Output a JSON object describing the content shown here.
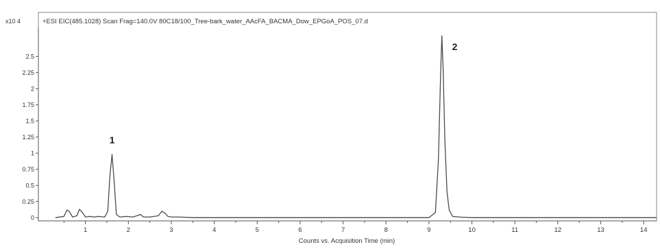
{
  "chart_data": {
    "type": "line",
    "title": "+ESI EIC(485.1028) Scan Frag=140.0V 80C18/100_Tree-bark_water_AAcFA_BACMA_Dow_EPGoA_POS_07.d",
    "y_multiplier_label": "x10 4",
    "xlabel": "Counts vs. Acquisition Time (min)",
    "ylabel": "",
    "xlim": [
      0,
      14.3
    ],
    "ylim": [
      -0.05,
      2.95
    ],
    "x_ticks": [
      1,
      2,
      3,
      4,
      5,
      6,
      7,
      8,
      9,
      10,
      11,
      12,
      13,
      14
    ],
    "x_tick_labels": [
      "1",
      "2",
      "3",
      "4",
      "5",
      "6",
      "7",
      "8",
      "9",
      "10",
      "11",
      "12",
      "13",
      "14"
    ],
    "y_ticks": [
      0,
      0.25,
      0.5,
      0.75,
      1,
      1.25,
      1.5,
      1.75,
      2,
      2.25,
      2.5
    ],
    "y_tick_labels": [
      "0",
      "0.25",
      "0.5",
      "0.75",
      "1",
      "1.25",
      "1.5",
      "1.75",
      "2",
      "2.25",
      "2.5"
    ],
    "grid": false,
    "annotations": [
      {
        "text": "1",
        "x": 1.62,
        "y": 1.15
      },
      {
        "text": "2",
        "x": 9.6,
        "y": 2.6
      }
    ],
    "series": [
      {
        "x": [
          0.3,
          0.5,
          0.57,
          0.63,
          0.7,
          0.8,
          0.86,
          0.93,
          1.0,
          1.1,
          1.2,
          1.3,
          1.45,
          1.52,
          1.57,
          1.62,
          1.67,
          1.72,
          1.8,
          1.95,
          2.1,
          2.2,
          2.28,
          2.35,
          2.5,
          2.7,
          2.78,
          2.85,
          2.92,
          3.0,
          3.2,
          3.5,
          4.0,
          5.0,
          6.0,
          7.0,
          8.0,
          9.0,
          9.15,
          9.22,
          9.27,
          9.3,
          9.33,
          9.37,
          9.42,
          9.47,
          9.55,
          9.7,
          10.0,
          11.0,
          12.0,
          13.0,
          14.0,
          14.3
        ],
        "y": [
          0.0,
          0.02,
          0.12,
          0.09,
          0.01,
          0.03,
          0.13,
          0.08,
          0.01,
          0.02,
          0.01,
          0.02,
          0.01,
          0.1,
          0.65,
          0.98,
          0.55,
          0.05,
          0.01,
          0.02,
          0.01,
          0.03,
          0.05,
          0.01,
          0.01,
          0.03,
          0.1,
          0.07,
          0.02,
          0.01,
          0.01,
          0.0,
          0.0,
          0.0,
          0.0,
          0.0,
          0.0,
          0.0,
          0.08,
          0.9,
          2.2,
          2.82,
          2.3,
          1.2,
          0.4,
          0.12,
          0.02,
          0.01,
          0.0,
          0.0,
          0.0,
          0.0,
          0.0,
          0.0
        ]
      }
    ]
  }
}
